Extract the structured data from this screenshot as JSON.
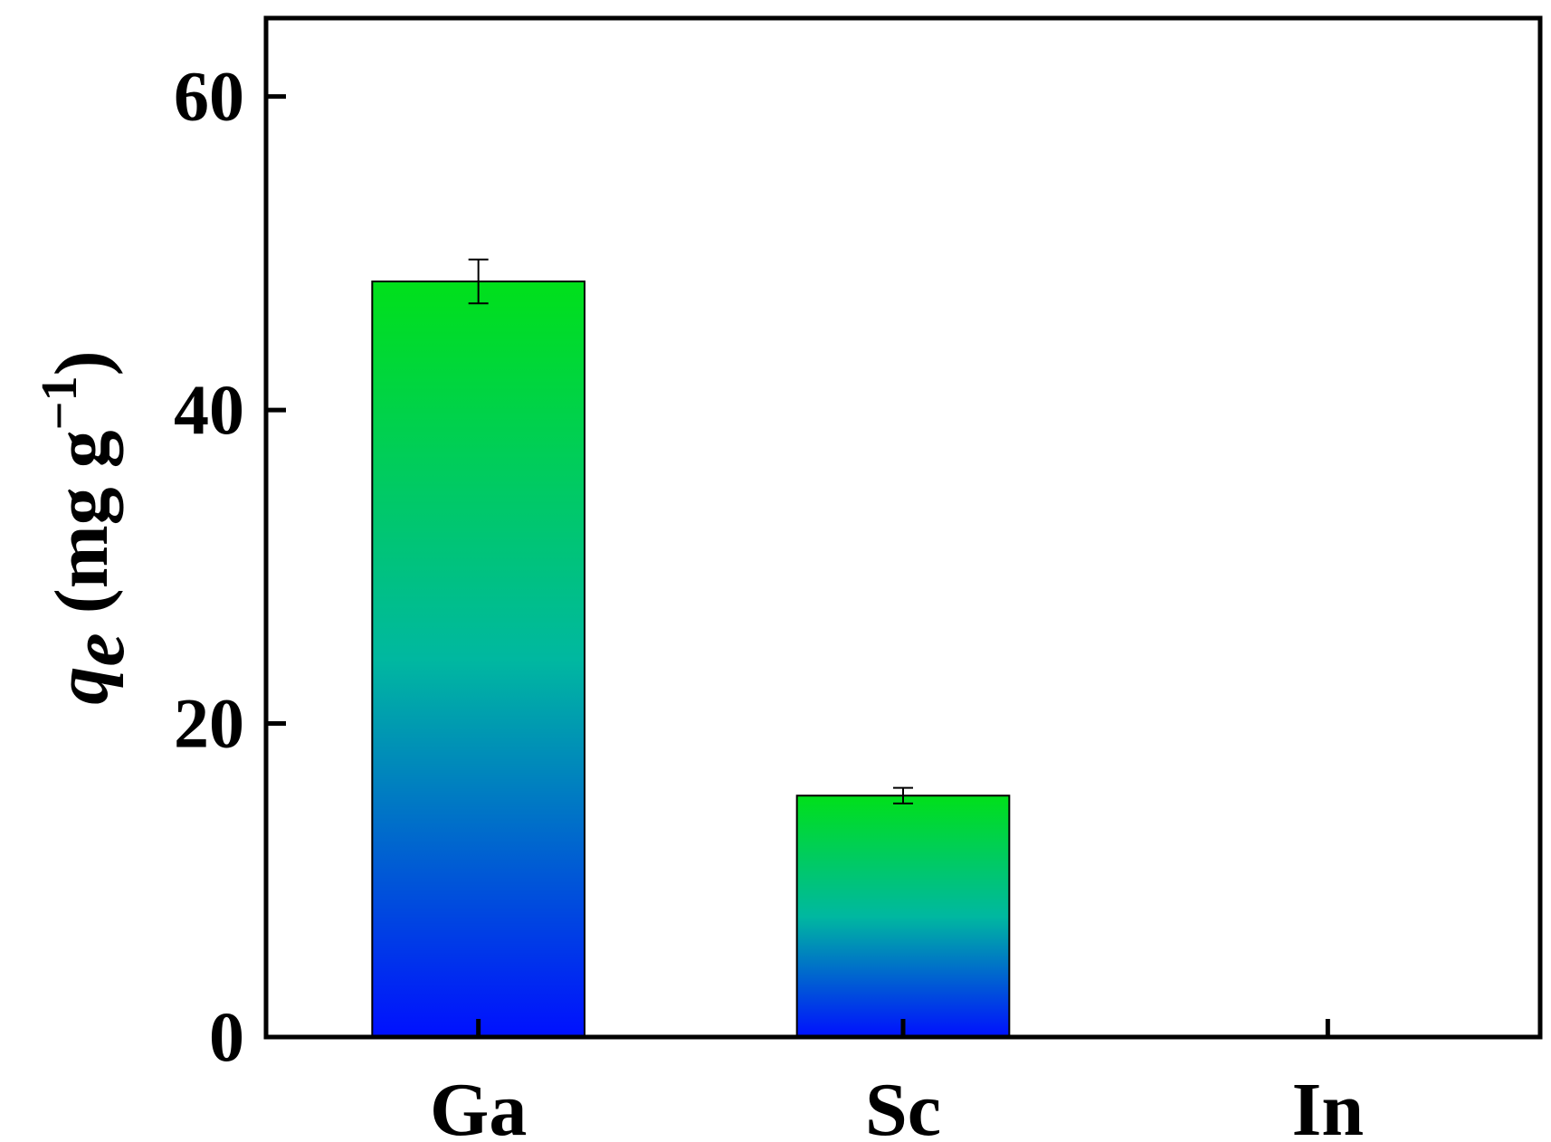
{
  "chart_data": {
    "type": "bar",
    "categories": [
      "Ga",
      "Sc",
      "In"
    ],
    "values": [
      48.2,
      15.4,
      0
    ],
    "errors": [
      1.4,
      0.5,
      0
    ],
    "ylim": [
      0,
      65
    ],
    "yticks": [
      0,
      20,
      40,
      60
    ],
    "ylabel": {
      "symbol": "q",
      "subscript": "e",
      "unit_open": " (mg g",
      "unit_sup": "−1",
      "unit_close": ")"
    },
    "xlabel": "",
    "title": "",
    "grid": false,
    "legend": "none",
    "colors": {
      "bar_top": "#00e01a",
      "bar_bottom": "#0010ff",
      "axis": "#000000"
    }
  }
}
